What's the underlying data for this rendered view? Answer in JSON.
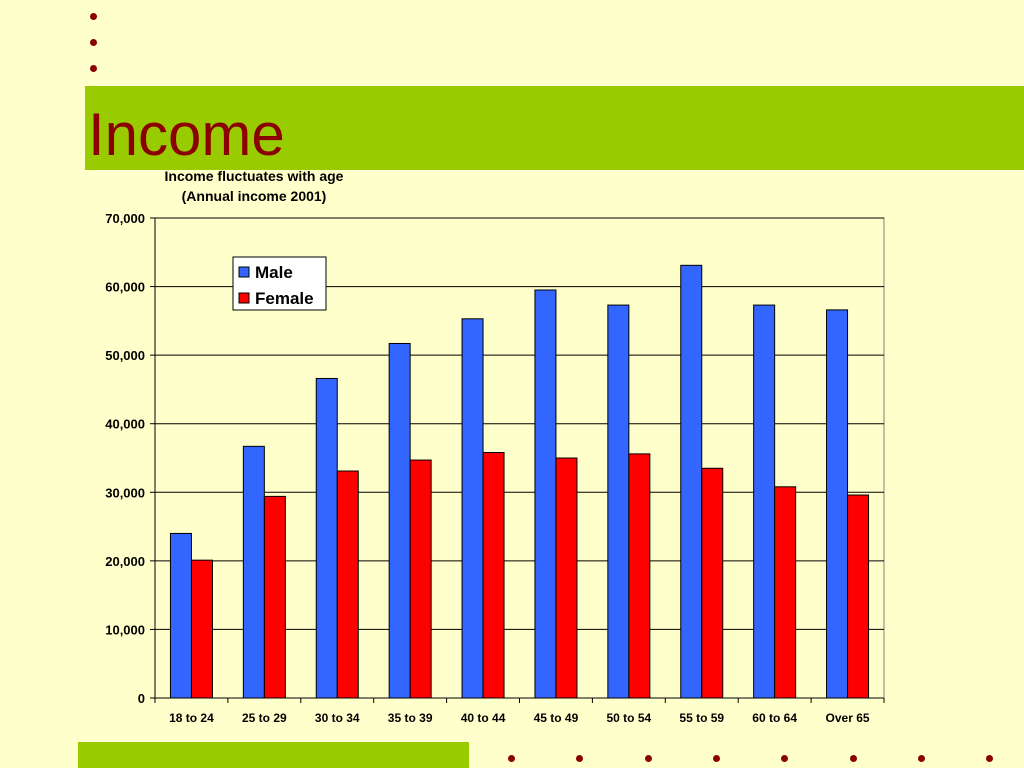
{
  "slide": {
    "title": "Income"
  },
  "colors": {
    "background": "#ffffcc",
    "band": "#99cc00",
    "title": "#8b0000",
    "bullet": "#8b0000"
  },
  "chart_data": {
    "type": "bar",
    "title": "Income fluctuates with age",
    "subtitle": "(Annual income 2001)",
    "xlabel": "",
    "ylabel": "",
    "categories": [
      "18 to 24",
      "25 to 29",
      "30 to 34",
      "35 to 39",
      "40 to 44",
      "45 to 49",
      "50 to 54",
      "55 to 59",
      "60 to 64",
      "Over 65"
    ],
    "series": [
      {
        "name": "Male",
        "color": "#3366ff",
        "values": [
          24000,
          36700,
          46600,
          51700,
          55300,
          59500,
          57300,
          63100,
          57300,
          56600
        ]
      },
      {
        "name": "Female",
        "color": "#ff0000",
        "values": [
          20100,
          29400,
          33100,
          34700,
          35800,
          35000,
          35600,
          33500,
          30800,
          29600
        ]
      }
    ],
    "ylim": [
      0,
      70000
    ],
    "yticks": [
      0,
      10000,
      20000,
      30000,
      40000,
      50000,
      60000,
      70000
    ],
    "ytick_labels": [
      "0",
      "10,000",
      "20,000",
      "30,000",
      "40,000",
      "50,000",
      "60,000",
      "70,000"
    ],
    "grid": true,
    "legend_position": "top-left"
  }
}
